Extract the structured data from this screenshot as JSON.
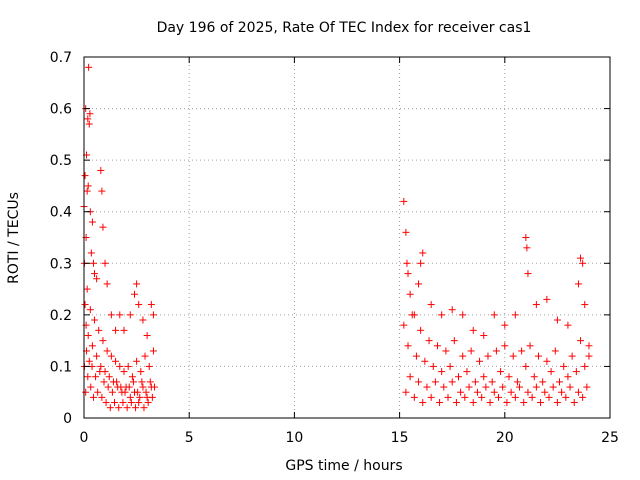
{
  "chart_data": {
    "type": "scatter",
    "title": "Day 196 of 2025, Rate Of TEC Index for receiver cas1",
    "xlabel": "GPS time / hours",
    "ylabel": "ROTI / TECUs",
    "xlim": [
      0,
      25
    ],
    "ylim": [
      0,
      0.7
    ],
    "xticks": [
      0,
      5,
      10,
      15,
      20,
      25
    ],
    "yticks": [
      0,
      0.1,
      0.2,
      0.3,
      0.4,
      0.5,
      0.6,
      0.7
    ],
    "grid": true,
    "marker": "+",
    "color": "#ff0000",
    "series": [
      {
        "name": "ROTI",
        "points": [
          [
            0.0,
            0.41
          ],
          [
            0.02,
            0.3
          ],
          [
            0.05,
            0.47
          ],
          [
            0.08,
            0.6
          ],
          [
            0.1,
            0.35
          ],
          [
            0.12,
            0.51
          ],
          [
            0.15,
            0.44
          ],
          [
            0.18,
            0.58
          ],
          [
            0.2,
            0.45
          ],
          [
            0.22,
            0.68
          ],
          [
            0.25,
            0.57
          ],
          [
            0.28,
            0.59
          ],
          [
            0.3,
            0.4
          ],
          [
            0.35,
            0.32
          ],
          [
            0.4,
            0.38
          ],
          [
            0.45,
            0.3
          ],
          [
            0.5,
            0.28
          ],
          [
            0.6,
            0.27
          ],
          [
            0.8,
            0.48
          ],
          [
            0.85,
            0.44
          ],
          [
            0.9,
            0.37
          ],
          [
            1.0,
            0.3
          ],
          [
            1.1,
            0.26
          ],
          [
            1.3,
            0.2
          ],
          [
            1.5,
            0.17
          ],
          [
            1.7,
            0.2
          ],
          [
            1.9,
            0.17
          ],
          [
            2.2,
            0.2
          ],
          [
            2.4,
            0.24
          ],
          [
            2.5,
            0.26
          ],
          [
            2.6,
            0.22
          ],
          [
            2.8,
            0.19
          ],
          [
            3.0,
            0.16
          ],
          [
            3.2,
            0.22
          ],
          [
            3.3,
            0.2
          ],
          [
            0.05,
            0.22
          ],
          [
            0.1,
            0.18
          ],
          [
            0.15,
            0.25
          ],
          [
            0.2,
            0.16
          ],
          [
            0.3,
            0.21
          ],
          [
            0.4,
            0.14
          ],
          [
            0.5,
            0.19
          ],
          [
            0.6,
            0.12
          ],
          [
            0.7,
            0.17
          ],
          [
            0.8,
            0.1
          ],
          [
            0.9,
            0.15
          ],
          [
            1.0,
            0.09
          ],
          [
            1.1,
            0.13
          ],
          [
            1.2,
            0.08
          ],
          [
            1.3,
            0.12
          ],
          [
            1.4,
            0.07
          ],
          [
            1.5,
            0.11
          ],
          [
            1.6,
            0.06
          ],
          [
            1.7,
            0.1
          ],
          [
            1.8,
            0.05
          ],
          [
            1.9,
            0.09
          ],
          [
            2.0,
            0.06
          ],
          [
            2.1,
            0.1
          ],
          [
            2.2,
            0.04
          ],
          [
            2.3,
            0.08
          ],
          [
            2.4,
            0.05
          ],
          [
            2.5,
            0.11
          ],
          [
            2.6,
            0.03
          ],
          [
            2.7,
            0.09
          ],
          [
            2.8,
            0.06
          ],
          [
            2.9,
            0.12
          ],
          [
            3.0,
            0.04
          ],
          [
            3.1,
            0.1
          ],
          [
            3.2,
            0.06
          ],
          [
            3.3,
            0.13
          ],
          [
            0.02,
            0.1
          ],
          [
            0.08,
            0.05
          ],
          [
            0.12,
            0.13
          ],
          [
            0.18,
            0.08
          ],
          [
            0.25,
            0.11
          ],
          [
            0.32,
            0.06
          ],
          [
            0.38,
            0.1
          ],
          [
            0.45,
            0.04
          ],
          [
            0.55,
            0.08
          ],
          [
            0.65,
            0.05
          ],
          [
            0.75,
            0.09
          ],
          [
            0.85,
            0.04
          ],
          [
            0.95,
            0.07
          ],
          [
            1.05,
            0.03
          ],
          [
            1.15,
            0.06
          ],
          [
            1.25,
            0.02
          ],
          [
            1.35,
            0.05
          ],
          [
            1.45,
            0.03
          ],
          [
            1.55,
            0.07
          ],
          [
            1.65,
            0.02
          ],
          [
            1.75,
            0.06
          ],
          [
            1.85,
            0.03
          ],
          [
            1.95,
            0.05
          ],
          [
            2.05,
            0.02
          ],
          [
            2.15,
            0.06
          ],
          [
            2.25,
            0.03
          ],
          [
            2.35,
            0.07
          ],
          [
            2.45,
            0.02
          ],
          [
            2.55,
            0.05
          ],
          [
            2.65,
            0.04
          ],
          [
            2.75,
            0.07
          ],
          [
            2.85,
            0.02
          ],
          [
            2.95,
            0.05
          ],
          [
            3.05,
            0.03
          ],
          [
            3.15,
            0.07
          ],
          [
            3.25,
            0.04
          ],
          [
            3.35,
            0.06
          ],
          [
            15.2,
            0.42
          ],
          [
            15.3,
            0.36
          ],
          [
            15.35,
            0.3
          ],
          [
            15.4,
            0.28
          ],
          [
            15.5,
            0.24
          ],
          [
            15.7,
            0.2
          ],
          [
            15.9,
            0.26
          ],
          [
            16.0,
            0.3
          ],
          [
            16.1,
            0.32
          ],
          [
            16.5,
            0.22
          ],
          [
            17.0,
            0.2
          ],
          [
            17.5,
            0.21
          ],
          [
            18.0,
            0.2
          ],
          [
            18.5,
            0.17
          ],
          [
            19.0,
            0.16
          ],
          [
            19.5,
            0.2
          ],
          [
            20.0,
            0.18
          ],
          [
            20.5,
            0.2
          ],
          [
            21.0,
            0.35
          ],
          [
            21.05,
            0.33
          ],
          [
            21.1,
            0.28
          ],
          [
            21.5,
            0.22
          ],
          [
            22.0,
            0.23
          ],
          [
            22.5,
            0.19
          ],
          [
            23.0,
            0.18
          ],
          [
            23.5,
            0.26
          ],
          [
            23.6,
            0.31
          ],
          [
            23.7,
            0.3
          ],
          [
            23.8,
            0.22
          ],
          [
            24.0,
            0.14
          ],
          [
            15.2,
            0.18
          ],
          [
            15.4,
            0.14
          ],
          [
            15.6,
            0.2
          ],
          [
            15.8,
            0.12
          ],
          [
            16.0,
            0.17
          ],
          [
            16.2,
            0.11
          ],
          [
            16.4,
            0.15
          ],
          [
            16.6,
            0.1
          ],
          [
            16.8,
            0.14
          ],
          [
            17.0,
            0.09
          ],
          [
            17.2,
            0.13
          ],
          [
            17.4,
            0.1
          ],
          [
            17.6,
            0.15
          ],
          [
            17.8,
            0.08
          ],
          [
            18.0,
            0.12
          ],
          [
            18.2,
            0.09
          ],
          [
            18.4,
            0.13
          ],
          [
            18.6,
            0.07
          ],
          [
            18.8,
            0.11
          ],
          [
            19.0,
            0.08
          ],
          [
            19.2,
            0.12
          ],
          [
            19.4,
            0.07
          ],
          [
            19.6,
            0.13
          ],
          [
            19.8,
            0.09
          ],
          [
            20.0,
            0.14
          ],
          [
            20.2,
            0.08
          ],
          [
            20.4,
            0.12
          ],
          [
            20.6,
            0.07
          ],
          [
            20.8,
            0.13
          ],
          [
            21.0,
            0.1
          ],
          [
            21.2,
            0.14
          ],
          [
            21.4,
            0.08
          ],
          [
            21.6,
            0.12
          ],
          [
            21.8,
            0.07
          ],
          [
            22.0,
            0.11
          ],
          [
            22.2,
            0.09
          ],
          [
            22.4,
            0.13
          ],
          [
            22.6,
            0.07
          ],
          [
            22.8,
            0.1
          ],
          [
            23.0,
            0.08
          ],
          [
            23.2,
            0.12
          ],
          [
            23.4,
            0.09
          ],
          [
            23.6,
            0.15
          ],
          [
            23.8,
            0.1
          ],
          [
            24.0,
            0.12
          ],
          [
            15.3,
            0.05
          ],
          [
            15.5,
            0.08
          ],
          [
            15.7,
            0.04
          ],
          [
            15.9,
            0.07
          ],
          [
            16.1,
            0.03
          ],
          [
            16.3,
            0.06
          ],
          [
            16.5,
            0.04
          ],
          [
            16.7,
            0.07
          ],
          [
            16.9,
            0.03
          ],
          [
            17.1,
            0.06
          ],
          [
            17.3,
            0.04
          ],
          [
            17.5,
            0.07
          ],
          [
            17.7,
            0.03
          ],
          [
            17.9,
            0.05
          ],
          [
            18.1,
            0.04
          ],
          [
            18.3,
            0.06
          ],
          [
            18.5,
            0.03
          ],
          [
            18.7,
            0.05
          ],
          [
            18.9,
            0.04
          ],
          [
            19.1,
            0.06
          ],
          [
            19.3,
            0.03
          ],
          [
            19.5,
            0.05
          ],
          [
            19.7,
            0.04
          ],
          [
            19.9,
            0.06
          ],
          [
            20.1,
            0.03
          ],
          [
            20.3,
            0.05
          ],
          [
            20.5,
            0.04
          ],
          [
            20.7,
            0.06
          ],
          [
            20.9,
            0.03
          ],
          [
            21.1,
            0.05
          ],
          [
            21.3,
            0.04
          ],
          [
            21.5,
            0.06
          ],
          [
            21.7,
            0.03
          ],
          [
            21.9,
            0.05
          ],
          [
            22.1,
            0.04
          ],
          [
            22.3,
            0.06
          ],
          [
            22.5,
            0.03
          ],
          [
            22.7,
            0.05
          ],
          [
            22.9,
            0.04
          ],
          [
            23.1,
            0.06
          ],
          [
            23.3,
            0.03
          ],
          [
            23.5,
            0.05
          ],
          [
            23.7,
            0.04
          ],
          [
            23.9,
            0.06
          ]
        ]
      }
    ]
  }
}
